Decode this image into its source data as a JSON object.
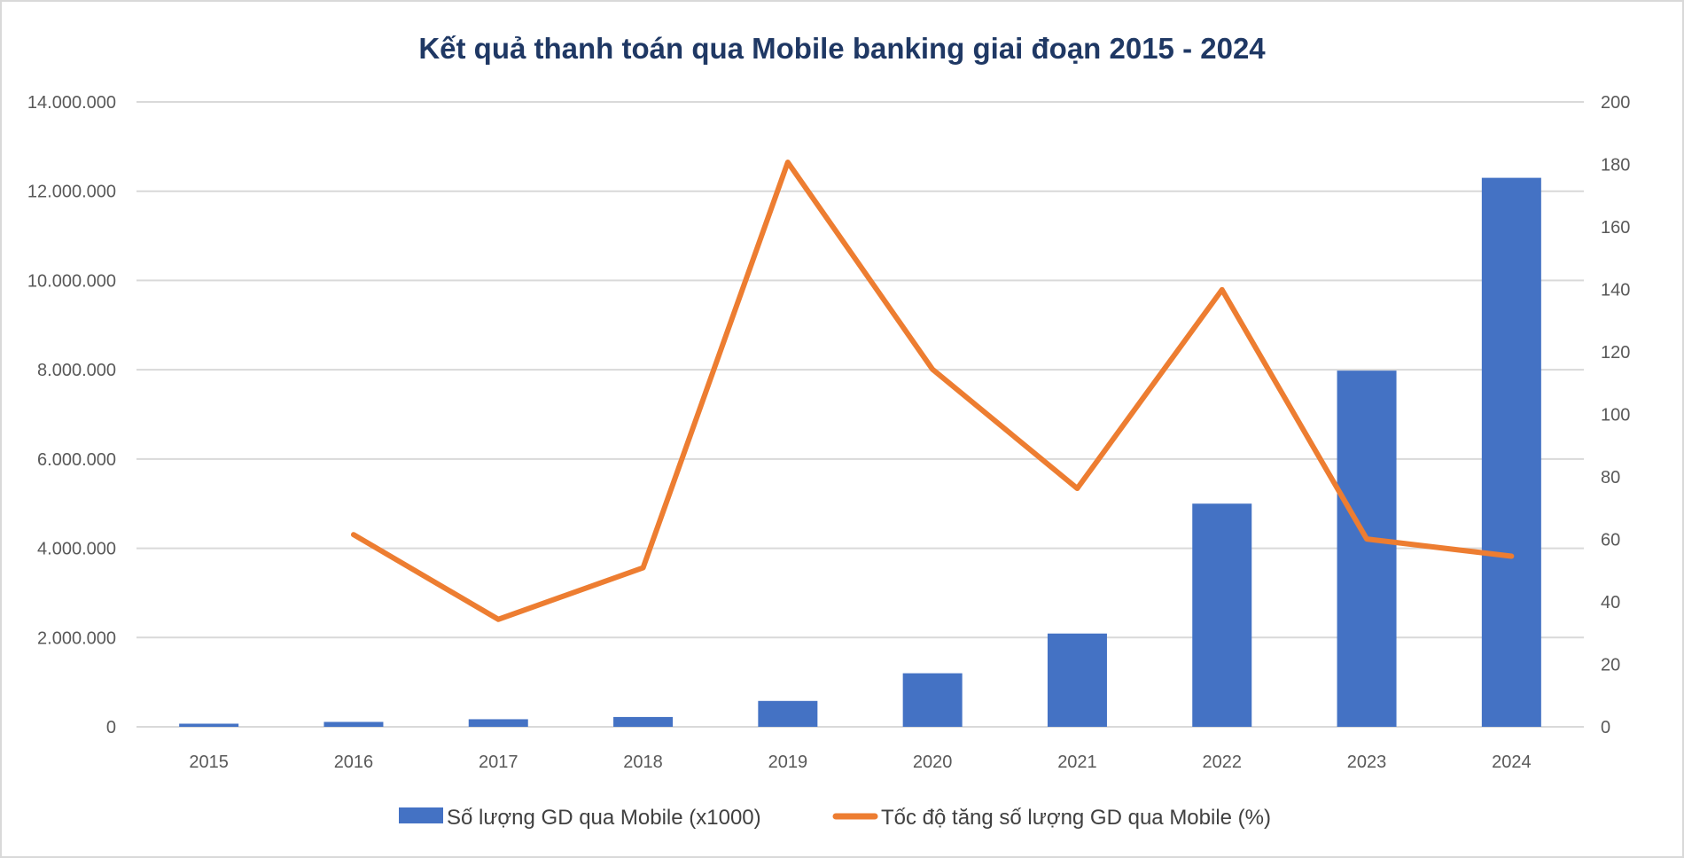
{
  "chart_data": {
    "type": "bar+line",
    "title": "Kết quả thanh toán qua Mobile banking giai đoạn 2015 - 2024",
    "categories": [
      "2015",
      "2016",
      "2017",
      "2018",
      "2019",
      "2020",
      "2021",
      "2022",
      "2023",
      "2024"
    ],
    "series": [
      {
        "name": "Số lượng GD qua Mobile (x1000)",
        "type": "bar",
        "axis": "left",
        "color": "#4472c4",
        "values": [
          70000,
          110000,
          170000,
          220000,
          580000,
          1200000,
          2090000,
          5000000,
          7980000,
          12300000
        ]
      },
      {
        "name": "Tốc độ tăng số lượng GD qua Mobile (%)",
        "type": "line",
        "axis": "right",
        "color": "#ed7d31",
        "values": [
          null,
          61.5,
          34.4,
          50.9,
          180.7,
          114.4,
          76.3,
          139.9,
          60.1,
          54.6
        ]
      }
    ],
    "left_axis": {
      "ylim": [
        0,
        14000000
      ],
      "ticks": [
        "0",
        "2.000.000",
        "4.000.000",
        "6.000.000",
        "8.000.000",
        "10.000.000",
        "12.000.000",
        "14.000.000"
      ]
    },
    "right_axis": {
      "ylim": [
        0,
        200
      ],
      "ticks": [
        "0",
        "20",
        "40",
        "60",
        "80",
        "100",
        "120",
        "140",
        "160",
        "180",
        "200"
      ]
    },
    "grid": true,
    "legend": "bottom"
  }
}
